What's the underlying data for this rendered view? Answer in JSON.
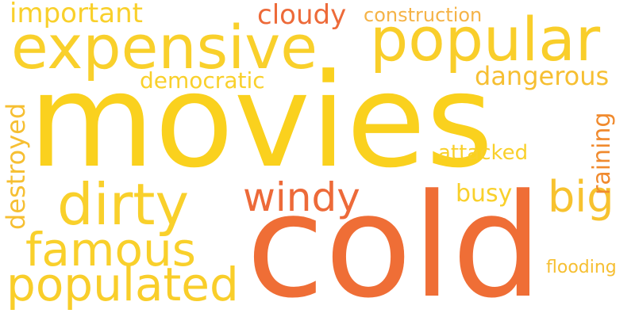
{
  "palette": {
    "gold": "#F9D02B",
    "yellow": "#FACB2A",
    "orange": "#F08A2E",
    "deep_orange": "#EE6A38",
    "light_orange": "#F5B347",
    "amber": "#F6BF32"
  },
  "words": [
    {
      "id": "movies",
      "text": "movies",
      "color": "#FAD11E",
      "orientation": "horizontal"
    },
    {
      "id": "cold",
      "text": "cold",
      "color": "#EF6E36",
      "orientation": "horizontal"
    },
    {
      "id": "expensive",
      "text": "expensive",
      "color": "#F9D02B",
      "orientation": "horizontal"
    },
    {
      "id": "popular",
      "text": "popular",
      "color": "#F9CE2A",
      "orientation": "horizontal"
    },
    {
      "id": "dirty",
      "text": "dirty",
      "color": "#F9D02B",
      "orientation": "horizontal"
    },
    {
      "id": "populated",
      "text": "populated",
      "color": "#F9CE2A",
      "orientation": "horizontal"
    },
    {
      "id": "famous",
      "text": "famous",
      "color": "#F9D02B",
      "orientation": "horizontal"
    },
    {
      "id": "windy",
      "text": "windy",
      "color": "#ED6A39",
      "orientation": "horizontal"
    },
    {
      "id": "big",
      "text": "big",
      "color": "#F7C22F",
      "orientation": "horizontal"
    },
    {
      "id": "important",
      "text": "important",
      "color": "#F9D02B",
      "orientation": "horizontal"
    },
    {
      "id": "cloudy",
      "text": "cloudy",
      "color": "#ED6A39",
      "orientation": "horizontal"
    },
    {
      "id": "construction",
      "text": "construction",
      "color": "#F5B347",
      "orientation": "horizontal"
    },
    {
      "id": "democratic",
      "text": "democratic",
      "color": "#F9D02B",
      "orientation": "horizontal"
    },
    {
      "id": "dangerous",
      "text": "dangerous",
      "color": "#F6BF32",
      "orientation": "horizontal"
    },
    {
      "id": "destroyed",
      "text": "destroyed",
      "color": "#F6BF32",
      "orientation": "vertical"
    },
    {
      "id": "raining",
      "text": "raining",
      "color": "#F08A2E",
      "orientation": "vertical"
    },
    {
      "id": "attacked",
      "text": "attacked",
      "color": "#F9D02B",
      "orientation": "horizontal"
    },
    {
      "id": "busy",
      "text": "busy",
      "color": "#F9D02B",
      "orientation": "horizontal"
    },
    {
      "id": "flooding",
      "text": "flooding",
      "color": "#F6BF32",
      "orientation": "horizontal"
    }
  ]
}
